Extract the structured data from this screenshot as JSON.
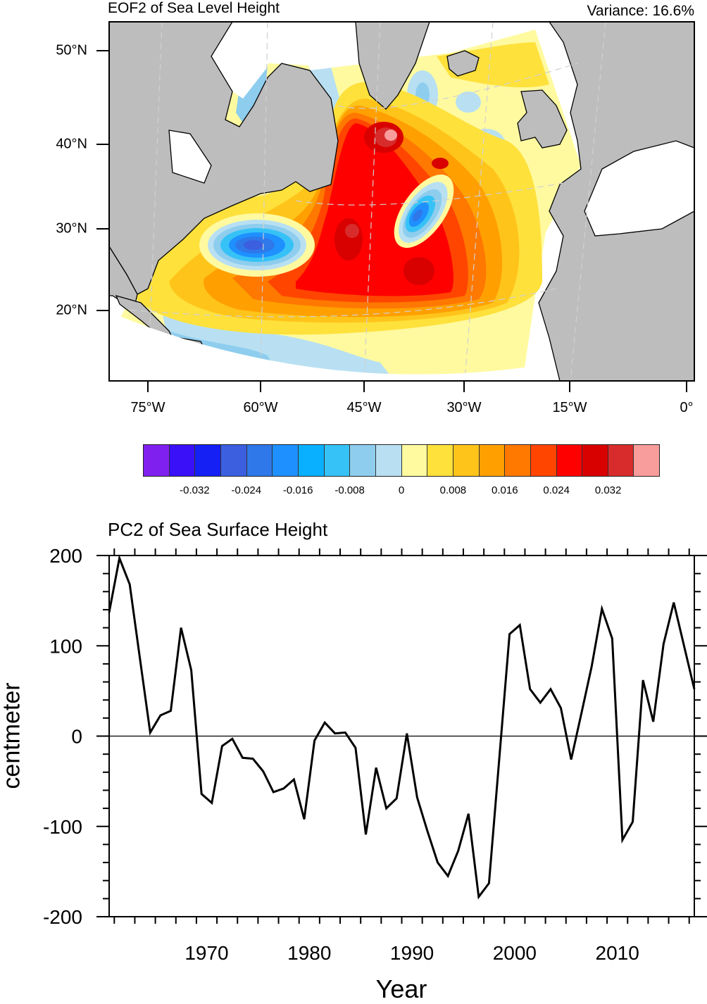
{
  "chart_data": [
    {
      "type": "heatmap",
      "title": "EOF2 of Sea Level Height",
      "subtitle": "Variance: 16.6%",
      "x_ticks": [
        "75°W",
        "60°W",
        "45°W",
        "30°W",
        "15°W",
        "0°"
      ],
      "y_ticks": [
        "50°N",
        "40°N",
        "30°N",
        "20°N"
      ],
      "colorbar": {
        "levels": [
          -0.036,
          -0.032,
          -0.028,
          -0.024,
          -0.02,
          -0.016,
          -0.012,
          -0.008,
          -0.004,
          0,
          0.004,
          0.008,
          0.012,
          0.016,
          0.02,
          0.024,
          0.028,
          0.032,
          0.036
        ],
        "labels": [
          "-0.032",
          "-0.024",
          "-0.016",
          "-0.008",
          "0",
          "0.008",
          "0.016",
          "0.024",
          "0.032"
        ],
        "colors": [
          "#7f20ef",
          "#3a10f8",
          "#1520f5",
          "#3c5fe0",
          "#2e78ea",
          "#1e90ff",
          "#09b0ff",
          "#36c2f7",
          "#8ecdee",
          "#b8e0f2",
          "#fffaa0",
          "#ffe13c",
          "#ffc41a",
          "#ffa000",
          "#ff7800",
          "#ff4500",
          "#ff0000",
          "#d90000",
          "#d82c2c",
          "#f89c9c"
        ]
      }
    },
    {
      "type": "line",
      "title": "PC2 of Sea Surface Height",
      "xlabel": "Year",
      "ylabel": "centmeter",
      "xlim": [
        1960.5,
        2017.5
      ],
      "ylim": [
        -200,
        200
      ],
      "x_ticks": [
        "1970",
        "1980",
        "1990",
        "2000",
        "2010"
      ],
      "y_ticks": [
        "200",
        "100",
        "0",
        "-100",
        "-200"
      ],
      "x_start": 1960.5,
      "x_step": 1,
      "values": [
        137,
        197,
        168,
        86,
        4,
        23,
        28,
        120,
        73,
        -64,
        -74,
        -11,
        -3,
        -24,
        -25,
        -39,
        -62,
        -58,
        -48,
        -92,
        -5,
        15,
        3,
        4,
        -13,
        -109,
        -35,
        -80,
        -69,
        3,
        -68,
        -105,
        -140,
        -155,
        -127,
        -86,
        -178,
        -163,
        -25,
        113,
        123,
        52,
        37,
        52,
        31,
        -26,
        25,
        77,
        141,
        108,
        -115,
        -95,
        62,
        16,
        102,
        148,
        100,
        52
      ],
      "reference_line": 0
    }
  ]
}
